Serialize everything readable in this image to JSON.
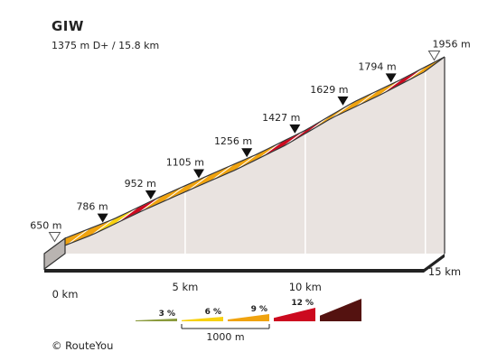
{
  "header": {
    "title": "GIW",
    "subtitle": "1375 m D+ / 15.8 km"
  },
  "footer": {
    "copyright": "© RouteYou"
  },
  "colors": {
    "grade_3": "#8a9a3c",
    "grade_6": "#f7d111",
    "grade_9": "#f0a30f",
    "grade_12": "#cc0a1f",
    "grade_max": "#541210",
    "side_wall": "#e9e3e0",
    "edge": "#333333",
    "divider": "#ffffff"
  },
  "chart_data": {
    "type": "area",
    "title": "GIW",
    "subtitle": "1375 m D+ / 15.8 km",
    "distance_total_km": 15.8,
    "elevation_gain_m": 1375,
    "x_unit": "km",
    "y_unit": "m",
    "x_ticks": [
      {
        "km": 0,
        "label": "0 km"
      },
      {
        "km": 5,
        "label": "5 km"
      },
      {
        "km": 10,
        "label": "10 km"
      },
      {
        "km": 15,
        "label": "15 km"
      }
    ],
    "elevation_markers": [
      {
        "km": 0,
        "elevation": 650,
        "label": "650 m",
        "marker": "start"
      },
      {
        "km": 2,
        "elevation": 786,
        "label": "786 m",
        "marker": "waypoint"
      },
      {
        "km": 4,
        "elevation": 952,
        "label": "952 m",
        "marker": "waypoint"
      },
      {
        "km": 6,
        "elevation": 1105,
        "label": "1105 m",
        "marker": "waypoint"
      },
      {
        "km": 8,
        "elevation": 1256,
        "label": "1256 m",
        "marker": "waypoint"
      },
      {
        "km": 10,
        "elevation": 1427,
        "label": "1427 m",
        "marker": "waypoint"
      },
      {
        "km": 12,
        "elevation": 1629,
        "label": "1629 m",
        "marker": "waypoint"
      },
      {
        "km": 14,
        "elevation": 1794,
        "label": "1794 m",
        "marker": "waypoint"
      },
      {
        "km": 15.8,
        "elevation": 1956,
        "label": "1956 m",
        "marker": "end"
      }
    ],
    "segments": [
      {
        "start_km": 0,
        "end_km": 1,
        "grade_class": 9
      },
      {
        "start_km": 1,
        "end_km": 2,
        "grade_class": 9
      },
      {
        "start_km": 2,
        "end_km": 3,
        "grade_class": 6
      },
      {
        "start_km": 3,
        "end_km": 4,
        "grade_class": 12
      },
      {
        "start_km": 4,
        "end_km": 5,
        "grade_class": 9
      },
      {
        "start_km": 5,
        "end_km": 6,
        "grade_class": 9
      },
      {
        "start_km": 6,
        "end_km": 7,
        "grade_class": 9
      },
      {
        "start_km": 7,
        "end_km": 8,
        "grade_class": 9
      },
      {
        "start_km": 8,
        "end_km": 9,
        "grade_class": 9
      },
      {
        "start_km": 9,
        "end_km": 10,
        "grade_class": 12
      },
      {
        "start_km": 10,
        "end_km": 11,
        "grade_class": 12
      },
      {
        "start_km": 11,
        "end_km": 12,
        "grade_class": 9
      },
      {
        "start_km": 12,
        "end_km": 13,
        "grade_class": 9
      },
      {
        "start_km": 13,
        "end_km": 14,
        "grade_class": 9
      },
      {
        "start_km": 14,
        "end_km": 15,
        "grade_class": 12
      },
      {
        "start_km": 15,
        "end_km": 15.8,
        "grade_class": 9
      }
    ],
    "legend": {
      "items": [
        {
          "label": "3 %",
          "grade_class": 3
        },
        {
          "label": "6 %",
          "grade_class": 6
        },
        {
          "label": "9 %",
          "grade_class": 9
        },
        {
          "label": "12 %",
          "grade_class": 12
        },
        {
          "label": "",
          "grade_class": 15
        }
      ],
      "scale_label": "1000 m"
    }
  }
}
